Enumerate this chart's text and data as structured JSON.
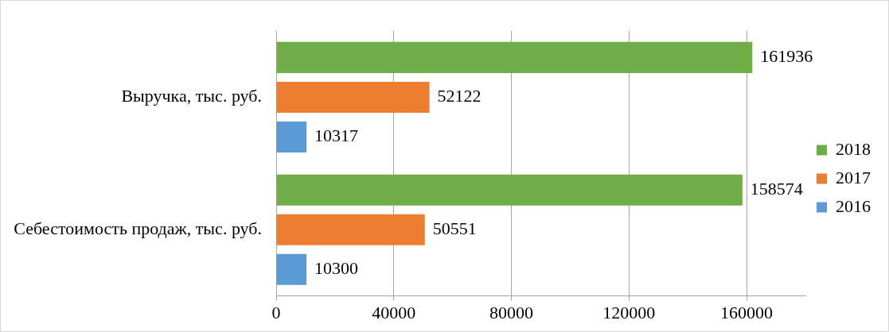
{
  "chart_data": {
    "type": "bar",
    "orientation": "horizontal",
    "categories": [
      "Выручка, тыс. руб.",
      "Себестоимость продаж, тыс. руб."
    ],
    "series": [
      {
        "name": "2018",
        "color": "#70ad47",
        "values": [
          161936,
          158574
        ]
      },
      {
        "name": "2017",
        "color": "#ed7d31",
        "values": [
          52122,
          50551
        ]
      },
      {
        "name": "2016",
        "color": "#5b9bd5",
        "values": [
          10317,
          10300
        ]
      }
    ],
    "xlim": [
      0,
      180000
    ],
    "xticks": [
      0,
      40000,
      80000,
      120000,
      160000
    ],
    "grid": "x",
    "legend": "right",
    "data_labels": true
  }
}
